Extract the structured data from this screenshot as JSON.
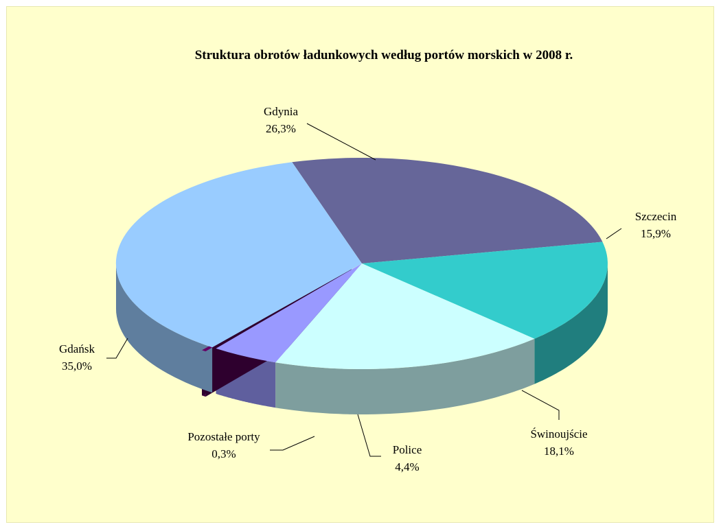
{
  "chart_data": {
    "type": "pie",
    "title": "Struktura obrotów ładunkowych według portów morskich w 2008 r.",
    "slices": [
      {
        "name": "Gdynia",
        "value": 26.3,
        "label": "26,3%",
        "color": "#666699"
      },
      {
        "name": "Szczecin",
        "value": 15.9,
        "label": "15,9%",
        "color": "#33cccc"
      },
      {
        "name": "Świnoujście",
        "value": 18.1,
        "label": "18,1%",
        "color": "#ccffff"
      },
      {
        "name": "Police",
        "value": 4.4,
        "label": "4,4%",
        "color": "#9999ff"
      },
      {
        "name": "Pozostałe porty",
        "value": 0.3,
        "label": "0,3%",
        "color": "#660066"
      },
      {
        "name": "Gdańsk",
        "value": 35.0,
        "label": "35,0%",
        "color": "#99ccff"
      }
    ],
    "style": "3d-exploded-pie"
  }
}
